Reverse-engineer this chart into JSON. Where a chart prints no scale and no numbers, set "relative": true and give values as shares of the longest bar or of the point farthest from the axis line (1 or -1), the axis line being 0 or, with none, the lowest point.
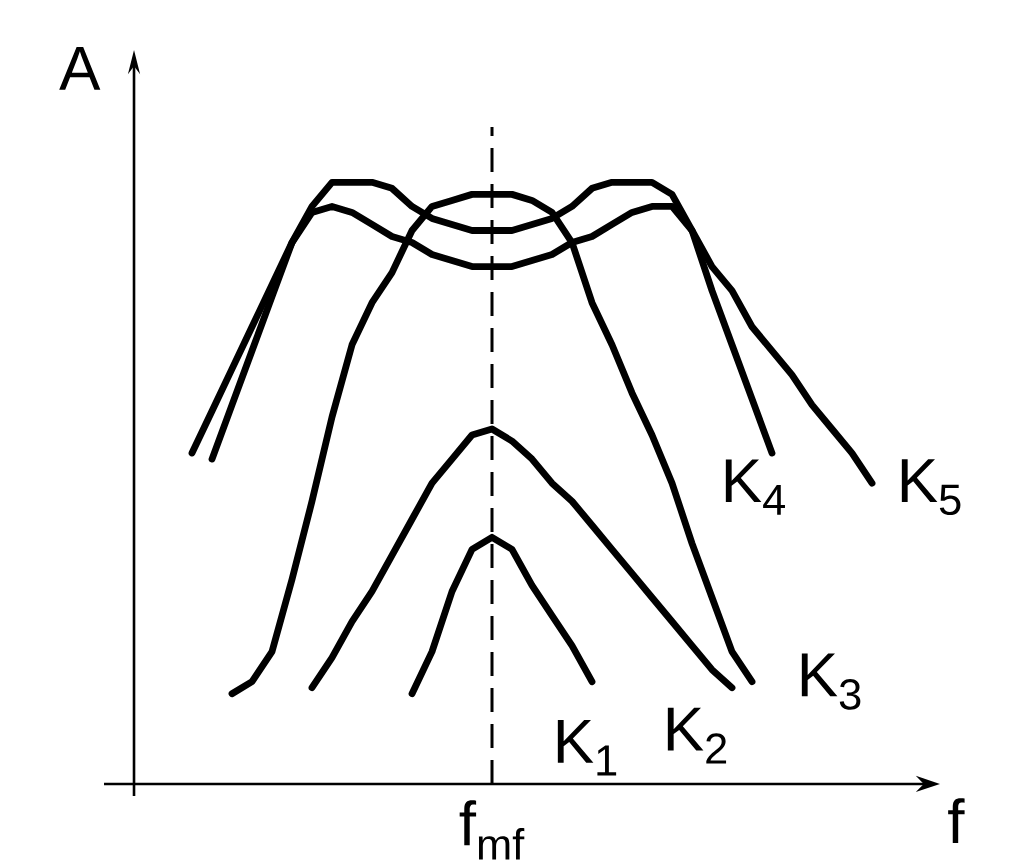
{
  "chart_data": {
    "type": "line",
    "relative": true,
    "xlabel": "f",
    "ylabel": "A",
    "categories": [
      null,
      null,
      null,
      null,
      null,
      null,
      null,
      null,
      null,
      null,
      null,
      null,
      null,
      null,
      null,
      null,
      null,
      null,
      null,
      null,
      null,
      null,
      null,
      null,
      null,
      null,
      null,
      null,
      null,
      null,
      null,
      null,
      null,
      null,
      null,
      null,
      null,
      null,
      null
    ],
    "ref_lines": [
      {
        "axis": "x",
        "value": "f$_{mf}$",
        "line_style": "dashed",
        "color": "#000000"
      }
    ],
    "series": [
      {
        "name": "K$_{1}$",
        "color": "#000000",
        "values": [
          null,
          null,
          null,
          null,
          null,
          null,
          null,
          null,
          null,
          null,
          null,
          null,
          null,
          null,
          null,
          0.15,
          0.22,
          0.32,
          0.39,
          0.41,
          0.39,
          0.33,
          0.28,
          0.23,
          0.17,
          null,
          null,
          null,
          null,
          null,
          null,
          null,
          null,
          null,
          null,
          null,
          null,
          null,
          null
        ]
      },
      {
        "name": "K$_{2}$",
        "color": "#000000",
        "values": [
          null,
          null,
          null,
          null,
          null,
          null,
          null,
          null,
          null,
          null,
          0.16,
          0.21,
          0.27,
          0.32,
          0.38,
          0.44,
          0.5,
          0.54,
          0.58,
          0.59,
          0.57,
          0.54,
          0.5,
          0.47,
          0.43,
          0.39,
          0.35,
          0.31,
          0.27,
          0.23,
          0.19,
          0.16,
          null,
          null,
          null,
          null,
          null,
          null,
          null
        ]
      },
      {
        "name": "K$_{3}$",
        "color": "#000000",
        "values": [
          null,
          null,
          null,
          null,
          null,
          null,
          0.15,
          0.17,
          0.22,
          0.34,
          0.47,
          0.61,
          0.73,
          0.8,
          0.85,
          0.92,
          0.96,
          0.97,
          0.98,
          0.98,
          0.98,
          0.97,
          0.95,
          0.9,
          0.8,
          0.73,
          0.65,
          0.58,
          0.5,
          0.4,
          0.31,
          0.22,
          0.17,
          null,
          null,
          null,
          null,
          null,
          null
        ]
      },
      {
        "name": "K$_{4}$",
        "color": "#000000",
        "values": [
          null,
          null,
          null,
          null,
          null,
          0.54,
          0.63,
          0.72,
          0.81,
          0.9,
          0.96,
          1.0,
          1.0,
          1.0,
          0.99,
          0.96,
          0.94,
          0.93,
          0.92,
          0.92,
          0.92,
          0.93,
          0.94,
          0.96,
          0.99,
          1.0,
          1.0,
          1.0,
          0.98,
          0.92,
          0.82,
          0.73,
          0.64,
          0.55,
          null,
          null,
          null,
          null,
          null
        ]
      },
      {
        "name": "K$_{5}$",
        "color": "#000000",
        "values": [
          null,
          null,
          null,
          null,
          0.55,
          0.62,
          0.69,
          0.76,
          0.83,
          0.9,
          0.95,
          0.96,
          0.95,
          0.93,
          0.91,
          0.9,
          0.88,
          0.87,
          0.86,
          0.86,
          0.86,
          0.87,
          0.88,
          0.9,
          0.91,
          0.93,
          0.95,
          0.96,
          0.96,
          0.92,
          0.86,
          0.82,
          0.76,
          0.72,
          0.68,
          0.63,
          0.59,
          0.55,
          0.5
        ]
      }
    ]
  }
}
